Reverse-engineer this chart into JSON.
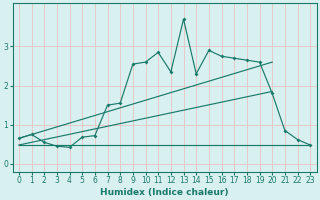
{
  "xlabel": "Humidex (Indice chaleur)",
  "bg_color": "#d8f0f0",
  "grid_color": "#e8c8c8",
  "line_color": "#1a7a6a",
  "xlim": [
    -0.5,
    23.5
  ],
  "ylim": [
    -0.2,
    4.1
  ],
  "xticks": [
    0,
    1,
    2,
    3,
    4,
    5,
    6,
    7,
    8,
    9,
    10,
    11,
    12,
    13,
    14,
    15,
    16,
    17,
    18,
    19,
    20,
    21,
    22,
    23
  ],
  "yticks": [
    0,
    1,
    2,
    3
  ],
  "line1_x": [
    0,
    1,
    2,
    3,
    4,
    5,
    6,
    7,
    8,
    9,
    10,
    11,
    12,
    13,
    14,
    15,
    16,
    17,
    18,
    19,
    20,
    21,
    22,
    23
  ],
  "line1_y": [
    0.65,
    0.75,
    0.55,
    0.45,
    0.42,
    0.68,
    0.72,
    1.5,
    1.55,
    2.55,
    2.6,
    2.85,
    2.35,
    3.7,
    2.3,
    2.9,
    2.75,
    2.7,
    2.65,
    2.6,
    1.8,
    0.85,
    0.62,
    0.48
  ],
  "line2_x": [
    0,
    23
  ],
  "line2_y": [
    0.48,
    0.48
  ],
  "line3_x": [
    0,
    20
  ],
  "line3_y": [
    0.65,
    2.6
  ],
  "line4_x": [
    0,
    20
  ],
  "line4_y": [
    0.48,
    1.85
  ]
}
